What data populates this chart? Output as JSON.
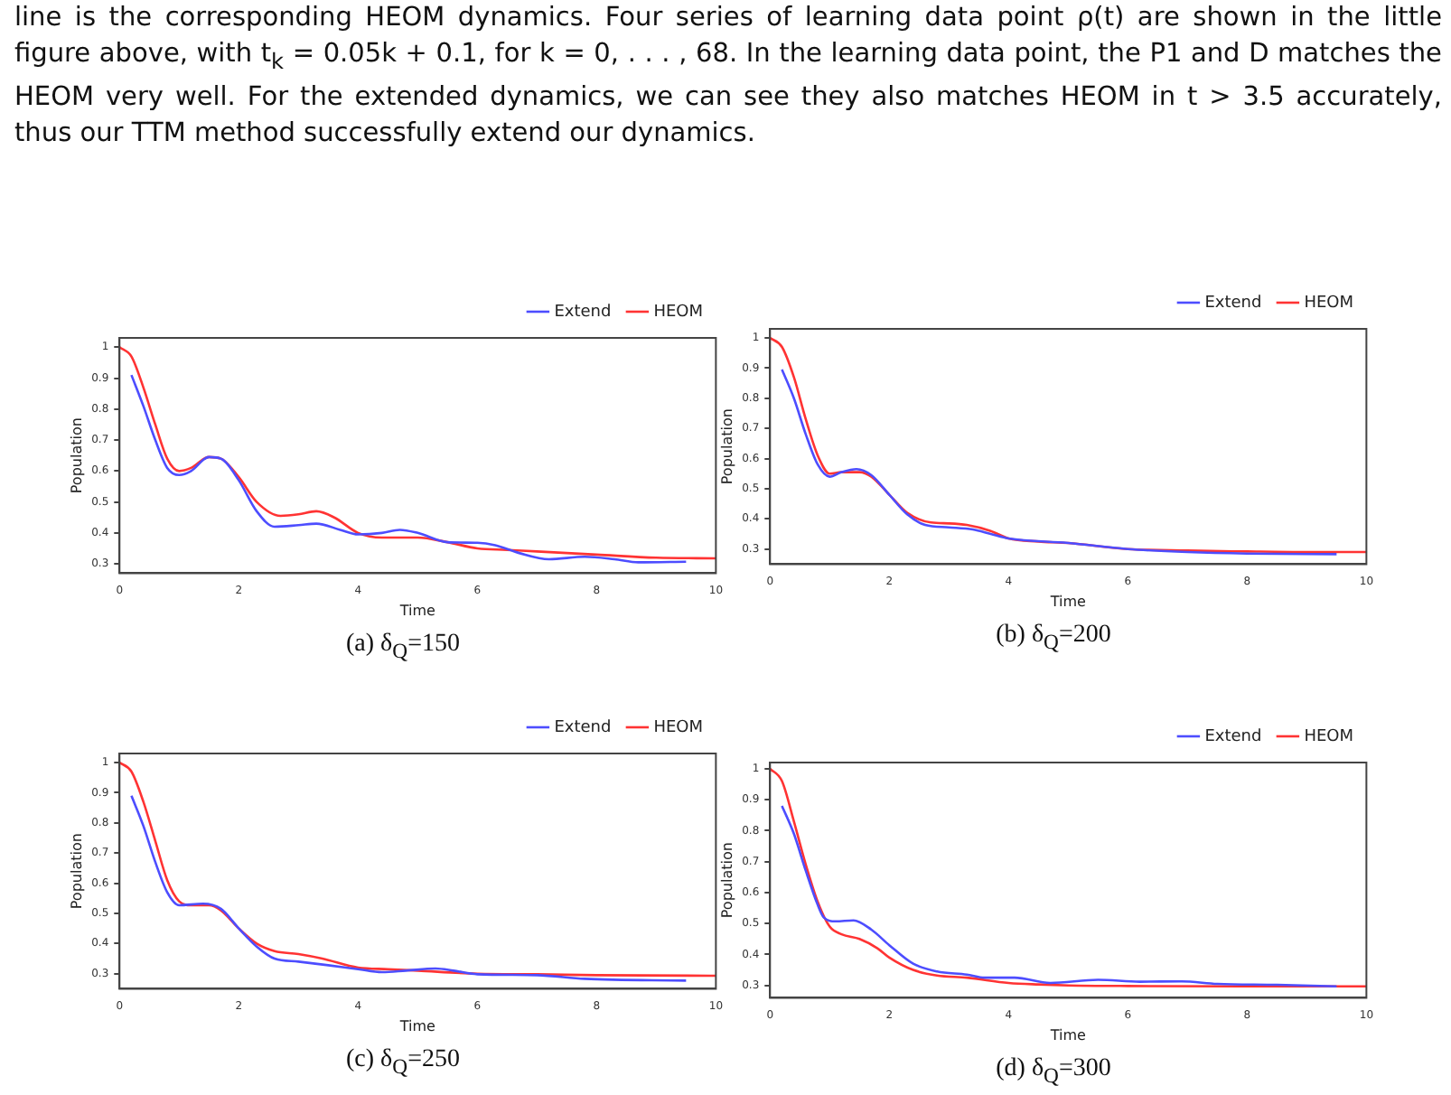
{
  "chart_data": [
    {
      "type": "other",
      "annotations": [
        "line is the corresponding HEOM dynamics. Four series of learning data point ρ(t) are shown in the little figure above, with t$_{k}$ = 0.05k + 0.1, for k = 0, . . . , 68. In the learning data point, the P1 and D matches the HEOM very well. For the extended dynamics, we can see they also matches HEOM in t > 3.5 accurately, thus our TTM method successfully extend our dynamics."
      ]
    },
    {
      "type": "line",
      "subtitle": "(a) δ$_{Q}$=150",
      "xlabel": "Time",
      "ylabel": "Population",
      "xlim": [
        0,
        10
      ],
      "xticks": [
        0,
        2,
        4,
        6,
        8,
        10
      ],
      "ylim": [
        0.27,
        1.03
      ],
      "yticks": [
        0.3,
        0.4,
        0.5,
        0.6,
        0.7,
        0.8,
        0.9,
        1.0
      ],
      "legend": "top right",
      "series": [
        {
          "name": "Extend",
          "color": "#4d4dff",
          "x": [
            0.2,
            0.4,
            0.6,
            0.8,
            1.0,
            1.2,
            1.5,
            1.7,
            2.0,
            2.3,
            2.6,
            3.0,
            3.3,
            3.7,
            4.0,
            4.4,
            4.7,
            5.0,
            5.5,
            6.0,
            6.3,
            6.7,
            7.2,
            7.8,
            8.3,
            8.7,
            9.5
          ],
          "values": [
            0.91,
            0.81,
            0.7,
            0.61,
            0.587,
            0.6,
            0.645,
            0.64,
            0.57,
            0.47,
            0.42,
            0.425,
            0.43,
            0.41,
            0.395,
            0.4,
            0.41,
            0.4,
            0.37,
            0.368,
            0.36,
            0.335,
            0.315,
            0.323,
            0.315,
            0.305,
            0.307
          ]
        },
        {
          "name": "HEOM",
          "color": "#ff3333",
          "x": [
            0,
            0.2,
            0.4,
            0.6,
            0.8,
            1.0,
            1.2,
            1.5,
            1.7,
            2.0,
            2.3,
            2.7,
            3.0,
            3.3,
            3.6,
            4.0,
            4.4,
            5.0,
            5.5,
            6.0,
            6.5,
            7.0,
            8.0,
            9.0,
            10
          ],
          "values": [
            1.0,
            0.97,
            0.87,
            0.75,
            0.64,
            0.6,
            0.61,
            0.645,
            0.64,
            0.58,
            0.5,
            0.455,
            0.46,
            0.47,
            0.45,
            0.4,
            0.385,
            0.385,
            0.37,
            0.35,
            0.345,
            0.34,
            0.33,
            0.32,
            0.318
          ]
        }
      ]
    },
    {
      "type": "line",
      "subtitle": "(b) δ$_{Q}$=200",
      "xlabel": "Time",
      "ylabel": "Population",
      "xlim": [
        0,
        10
      ],
      "xticks": [
        0,
        2,
        4,
        6,
        8,
        10
      ],
      "ylim": [
        0.25,
        1.03
      ],
      "yticks": [
        0.3,
        0.4,
        0.5,
        0.6,
        0.7,
        0.8,
        0.9,
        1.0
      ],
      "legend": "top right",
      "series": [
        {
          "name": "Extend",
          "color": "#4d4dff",
          "x": [
            0.2,
            0.4,
            0.6,
            0.8,
            1.0,
            1.2,
            1.45,
            1.7,
            2.0,
            2.3,
            2.6,
            3.0,
            3.4,
            3.7,
            4.0,
            5,
            6,
            7,
            8,
            9.5
          ],
          "values": [
            0.895,
            0.8,
            0.68,
            0.58,
            0.54,
            0.555,
            0.565,
            0.545,
            0.48,
            0.415,
            0.38,
            0.372,
            0.365,
            0.35,
            0.335,
            0.32,
            0.3,
            0.29,
            0.285,
            0.283
          ]
        },
        {
          "name": "HEOM",
          "color": "#ff3333",
          "x": [
            0,
            0.2,
            0.4,
            0.6,
            0.8,
            1.0,
            1.2,
            1.5,
            1.7,
            2.0,
            2.3,
            2.7,
            3.0,
            3.3,
            3.7,
            4.0,
            4.5,
            5,
            6,
            7,
            8,
            9,
            10
          ],
          "values": [
            1.0,
            0.97,
            0.87,
            0.73,
            0.61,
            0.55,
            0.555,
            0.555,
            0.54,
            0.48,
            0.42,
            0.388,
            0.385,
            0.38,
            0.36,
            0.335,
            0.325,
            0.32,
            0.3,
            0.295,
            0.292,
            0.29,
            0.29
          ]
        }
      ]
    },
    {
      "type": "line",
      "subtitle": "(c) δ$_{Q}$=250",
      "xlabel": "Time",
      "ylabel": "Population",
      "xlim": [
        0,
        10
      ],
      "xticks": [
        0,
        2,
        4,
        6,
        8,
        10
      ],
      "ylim": [
        0.25,
        1.03
      ],
      "yticks": [
        0.3,
        0.4,
        0.5,
        0.6,
        0.7,
        0.8,
        0.9,
        1.0
      ],
      "legend": "top right",
      "series": [
        {
          "name": "Extend",
          "color": "#4d4dff",
          "x": [
            0.2,
            0.4,
            0.6,
            0.8,
            1.0,
            1.4,
            1.7,
            2.0,
            2.3,
            2.6,
            3.0,
            3.5,
            4.0,
            4.4,
            4.8,
            5.3,
            5.6,
            6,
            7,
            7.8,
            9.5
          ],
          "values": [
            0.89,
            0.79,
            0.67,
            0.57,
            0.527,
            0.532,
            0.515,
            0.45,
            0.39,
            0.35,
            0.34,
            0.328,
            0.315,
            0.305,
            0.31,
            0.317,
            0.31,
            0.298,
            0.295,
            0.283,
            0.277
          ]
        },
        {
          "name": "HEOM",
          "color": "#ff3333",
          "x": [
            0,
            0.2,
            0.4,
            0.6,
            0.8,
            1.0,
            1.2,
            1.5,
            1.7,
            2.0,
            2.3,
            2.6,
            3.0,
            3.4,
            4.0,
            4.5,
            5,
            6,
            7,
            8,
            10
          ],
          "values": [
            1.0,
            0.97,
            0.87,
            0.74,
            0.61,
            0.54,
            0.527,
            0.527,
            0.51,
            0.45,
            0.4,
            0.375,
            0.365,
            0.35,
            0.32,
            0.315,
            0.31,
            0.3,
            0.298,
            0.295,
            0.293
          ]
        }
      ]
    },
    {
      "type": "line",
      "subtitle": "(d) δ$_{Q}$=300",
      "xlabel": "Time",
      "ylabel": "Population",
      "xlim": [
        0,
        10
      ],
      "xticks": [
        0,
        2,
        4,
        6,
        8,
        10
      ],
      "ylim": [
        0.26,
        1.02
      ],
      "yticks": [
        0.3,
        0.4,
        0.5,
        0.6,
        0.7,
        0.8,
        0.9,
        1.0
      ],
      "legend": "top right",
      "series": [
        {
          "name": "Extend",
          "color": "#4d4dff",
          "x": [
            0.2,
            0.4,
            0.6,
            0.8,
            0.9,
            1.1,
            1.4,
            1.7,
            2.0,
            2.4,
            2.8,
            3.3,
            3.6,
            4.1,
            4.7,
            5.5,
            6.2,
            6.9,
            7.5,
            8.5,
            9.5
          ],
          "values": [
            0.88,
            0.79,
            0.67,
            0.56,
            0.52,
            0.507,
            0.51,
            0.48,
            0.43,
            0.37,
            0.345,
            0.335,
            0.325,
            0.325,
            0.308,
            0.318,
            0.312,
            0.313,
            0.305,
            0.302,
            0.297
          ]
        },
        {
          "name": "HEOM",
          "color": "#ff3333",
          "x": [
            0,
            0.2,
            0.4,
            0.6,
            0.8,
            1.0,
            1.2,
            1.5,
            1.8,
            2.0,
            2.4,
            2.8,
            3.3,
            4,
            4.5,
            5,
            6,
            8,
            10
          ],
          "values": [
            1.0,
            0.96,
            0.83,
            0.69,
            0.57,
            0.49,
            0.465,
            0.45,
            0.42,
            0.39,
            0.35,
            0.332,
            0.325,
            0.308,
            0.303,
            0.3,
            0.298,
            0.297,
            0.297
          ]
        }
      ]
    }
  ]
}
